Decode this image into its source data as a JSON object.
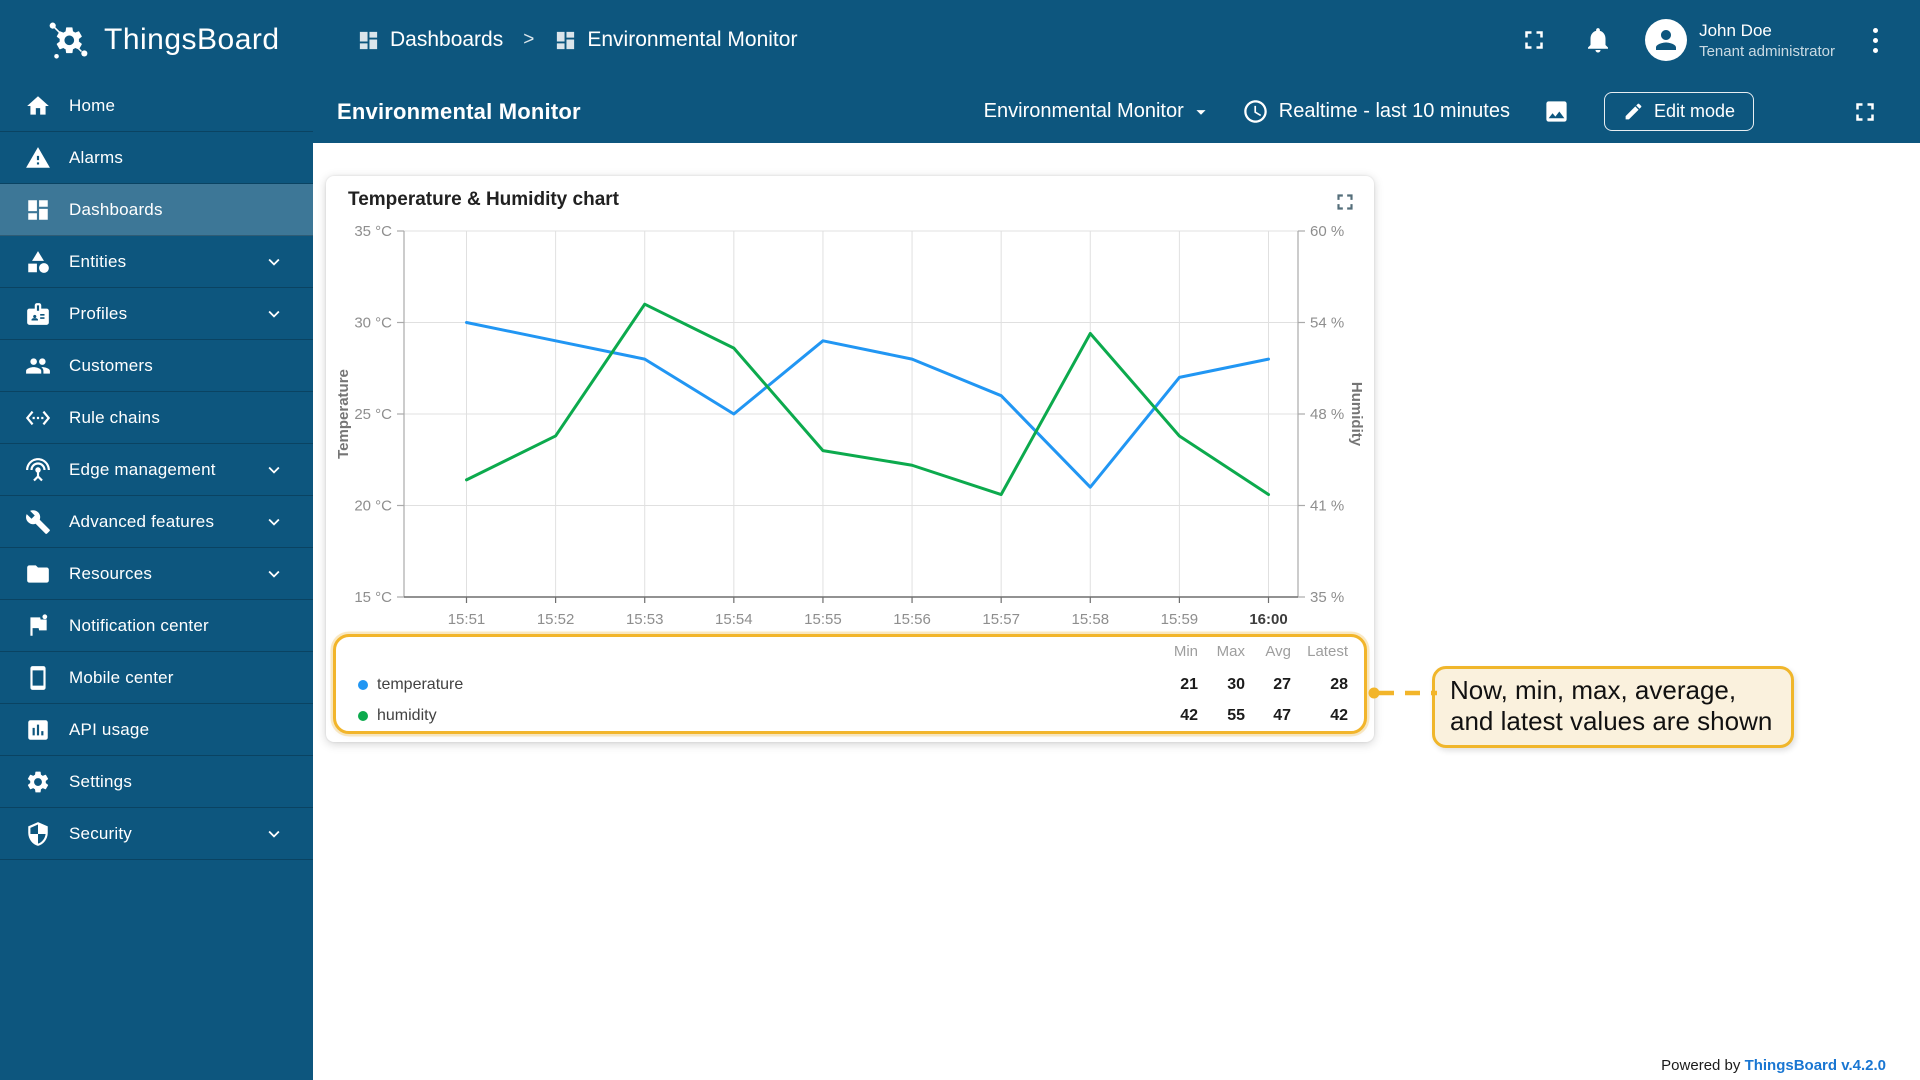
{
  "app": {
    "logo_text": "ThingsBoard",
    "powered_by": "Powered by",
    "powered_by_link": "ThingsBoard v.4.2.0"
  },
  "header": {
    "breadcrumb": [
      {
        "label": "Dashboards"
      },
      {
        "label": "Environmental Monitor"
      }
    ],
    "separator": ">",
    "user": {
      "name": "John Doe",
      "role": "Tenant administrator"
    }
  },
  "toolbar": {
    "title": "Environmental Monitor",
    "dashboard_select": "Environmental Monitor",
    "time_window": "Realtime - last 10 minutes",
    "edit_button": "Edit mode"
  },
  "sidebar": {
    "items": [
      {
        "id": "home",
        "label": "Home",
        "icon": "home",
        "active": false,
        "chevron": false
      },
      {
        "id": "alarms",
        "label": "Alarms",
        "icon": "alarms",
        "active": false,
        "chevron": false
      },
      {
        "id": "dashboards",
        "label": "Dashboards",
        "icon": "dashboards",
        "active": true,
        "chevron": false
      },
      {
        "id": "entities",
        "label": "Entities",
        "icon": "entities",
        "active": false,
        "chevron": true
      },
      {
        "id": "profiles",
        "label": "Profiles",
        "icon": "profiles",
        "active": false,
        "chevron": true
      },
      {
        "id": "customers",
        "label": "Customers",
        "icon": "customers",
        "active": false,
        "chevron": false
      },
      {
        "id": "rule-chains",
        "label": "Rule chains",
        "icon": "rulechains",
        "active": false,
        "chevron": false
      },
      {
        "id": "edge-management",
        "label": "Edge management",
        "icon": "edge",
        "active": false,
        "chevron": true
      },
      {
        "id": "advanced-features",
        "label": "Advanced features",
        "icon": "advanced",
        "active": false,
        "chevron": true
      },
      {
        "id": "resources",
        "label": "Resources",
        "icon": "resources",
        "active": false,
        "chevron": true
      },
      {
        "id": "notification-center",
        "label": "Notification center",
        "icon": "notification",
        "active": false,
        "chevron": false
      },
      {
        "id": "mobile-center",
        "label": "Mobile center",
        "icon": "mobile",
        "active": false,
        "chevron": false
      },
      {
        "id": "api-usage",
        "label": "API usage",
        "icon": "api",
        "active": false,
        "chevron": false
      },
      {
        "id": "settings",
        "label": "Settings",
        "icon": "settings",
        "active": false,
        "chevron": false
      },
      {
        "id": "security",
        "label": "Security",
        "icon": "security",
        "active": false,
        "chevron": true
      }
    ]
  },
  "widget": {
    "title": "Temperature & Humidity chart"
  },
  "chart_data": {
    "type": "line",
    "title": "Temperature & Humidity chart",
    "x": [
      "15:51",
      "15:52",
      "15:53",
      "15:54",
      "15:55",
      "15:56",
      "15:57",
      "15:58",
      "15:59",
      "16:00"
    ],
    "x_last_bold": true,
    "series": [
      {
        "name": "temperature",
        "axis": "left",
        "color": "#2196f3",
        "values": [
          30,
          29,
          28,
          25,
          29,
          28,
          26,
          21,
          27,
          28
        ]
      },
      {
        "name": "humidity",
        "axis": "right",
        "color": "#0caa4d",
        "values": [
          43,
          46,
          55,
          52,
          45,
          44,
          42,
          53,
          46,
          42
        ]
      }
    ],
    "left_axis": {
      "label": "Temperature",
      "min": 15,
      "max": 35,
      "ticks": [
        "35 °C",
        "30 °C",
        "25 °C",
        "20 °C",
        "15 °C"
      ]
    },
    "right_axis": {
      "label": "Humidity",
      "min": 35,
      "max": 60,
      "ticks": [
        "60 %",
        "54 %",
        "48 %",
        "41 %",
        "35 %"
      ]
    },
    "grid": true,
    "legend_position": "bottom",
    "legend_table": {
      "headers": [
        "Min",
        "Max",
        "Avg",
        "Latest"
      ],
      "rows": [
        {
          "name": "temperature",
          "color": "#2196f3",
          "min": 21,
          "max": 30,
          "avg": 27,
          "latest": 28
        },
        {
          "name": "humidity",
          "color": "#0caa4d",
          "min": 42,
          "max": 55,
          "avg": 47,
          "latest": 42
        }
      ]
    }
  },
  "annotation": {
    "text": "Now, min, max, average, and latest values are shown"
  },
  "colors": {
    "header_bg": "#0d567e",
    "temperature": "#2196f3",
    "humidity": "#0caa4d",
    "highlight": "#f2b52a",
    "link": "#1976d2"
  }
}
